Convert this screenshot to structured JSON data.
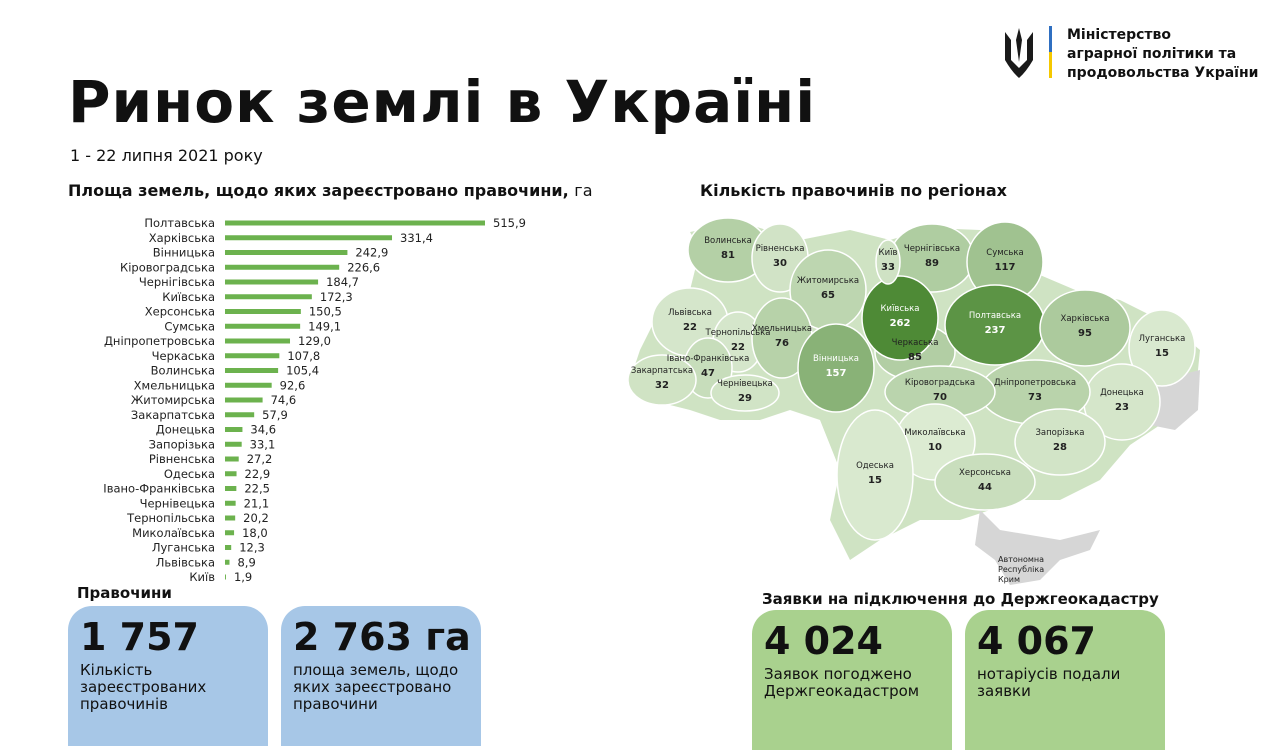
{
  "header": {
    "title": "Ринок землі в Україні",
    "subtitle": "1 - 22 липня 2021 року",
    "ministry": [
      "Міністерство",
      "аграрної політики та",
      "продовольства України"
    ]
  },
  "chart_data": {
    "type": "bar",
    "orientation": "horizontal",
    "title": "Площа земель, щодо яких зареєстровано правочини,",
    "unit": "га",
    "color": "#6cb24e",
    "categories": [
      "Полтавська",
      "Харківська",
      "Вінницька",
      "Кіровоградська",
      "Чернігівська",
      "Київська",
      "Херсонська",
      "Сумська",
      "Дніпропетровська",
      "Черкаська",
      "Волинська",
      "Хмельницька",
      "Житомирська",
      "Закарпатська",
      "Донецька",
      "Запорізька",
      "Рівненська",
      "Одеська",
      "Івано-Франківська",
      "Чернівецька",
      "Тернопільська",
      "Миколаївська",
      "Луганська",
      "Львівська",
      "Київ"
    ],
    "values": [
      515.9,
      331.4,
      242.9,
      226.6,
      184.7,
      172.3,
      150.5,
      149.1,
      129.0,
      107.8,
      105.4,
      92.6,
      74.6,
      57.9,
      34.6,
      33.1,
      27.2,
      22.9,
      22.5,
      21.1,
      20.2,
      18.0,
      12.3,
      8.9,
      1.9
    ],
    "value_labels": [
      "515,9",
      "331,4",
      "242,9",
      "226,6",
      "184,7",
      "172,3",
      "150,5",
      "149,1",
      "129,0",
      "107,8",
      "105,4",
      "92,6",
      "74,6",
      "57,9",
      "34,6",
      "33,1",
      "27,2",
      "22,9",
      "22,5",
      "21,1",
      "20,2",
      "18,0",
      "12,3",
      "8,9",
      "1,9"
    ]
  },
  "map": {
    "title": "Кількість правочинів по регіонах",
    "colors": [
      "#dcebd2",
      "#4e8a36"
    ],
    "regions": [
      {
        "name": "Волинська",
        "value": 81
      },
      {
        "name": "Рівненська",
        "value": 30
      },
      {
        "name": "Житомирська",
        "value": 65
      },
      {
        "name": "Чернігівська",
        "value": 89
      },
      {
        "name": "Сумська",
        "value": 117
      },
      {
        "name": "Львівська",
        "value": 22
      },
      {
        "name": "Тернопільська",
        "value": 22
      },
      {
        "name": "Івано-Франківська",
        "value": 47
      },
      {
        "name": "Закарпатська",
        "value": 32
      },
      {
        "name": "Чернівецька",
        "value": 29
      },
      {
        "name": "Хмельницька",
        "value": 76
      },
      {
        "name": "Вінницька",
        "value": 157
      },
      {
        "name": "Черкаська",
        "value": 85
      },
      {
        "name": "Полтавська",
        "value": 237
      },
      {
        "name": "Харківська",
        "value": 95
      },
      {
        "name": "Луганська",
        "value": 15
      },
      {
        "name": "Донецька",
        "value": 23
      },
      {
        "name": "Дніпропетровська",
        "value": 73
      },
      {
        "name": "Кіровоградська",
        "value": 70
      },
      {
        "name": "Миколаївська",
        "value": 10
      },
      {
        "name": "Одеська",
        "value": 15
      },
      {
        "name": "Запорізька",
        "value": 28
      },
      {
        "name": "Херсонська",
        "value": 44
      },
      {
        "name": "Київська",
        "value": 262
      },
      {
        "name": "Київ",
        "value": 33
      }
    ],
    "crimea": [
      "Автономна",
      "Республіка",
      "Крим"
    ]
  },
  "deals": {
    "title": "Правочини",
    "cards": [
      {
        "value": "1 757",
        "text": "Кількість зареєстрованих правочинів"
      },
      {
        "value": "2 763 га",
        "text": "площа земель, щодо яких зареєстровано правочини"
      }
    ]
  },
  "requests": {
    "title": "Заявки на підключення до Держгеокадастру",
    "cards": [
      {
        "value": "4 024",
        "text": "Заявок погоджено Держгеокадастром"
      },
      {
        "value": "4 067",
        "text": "нотаріусів подали заявки"
      }
    ]
  }
}
